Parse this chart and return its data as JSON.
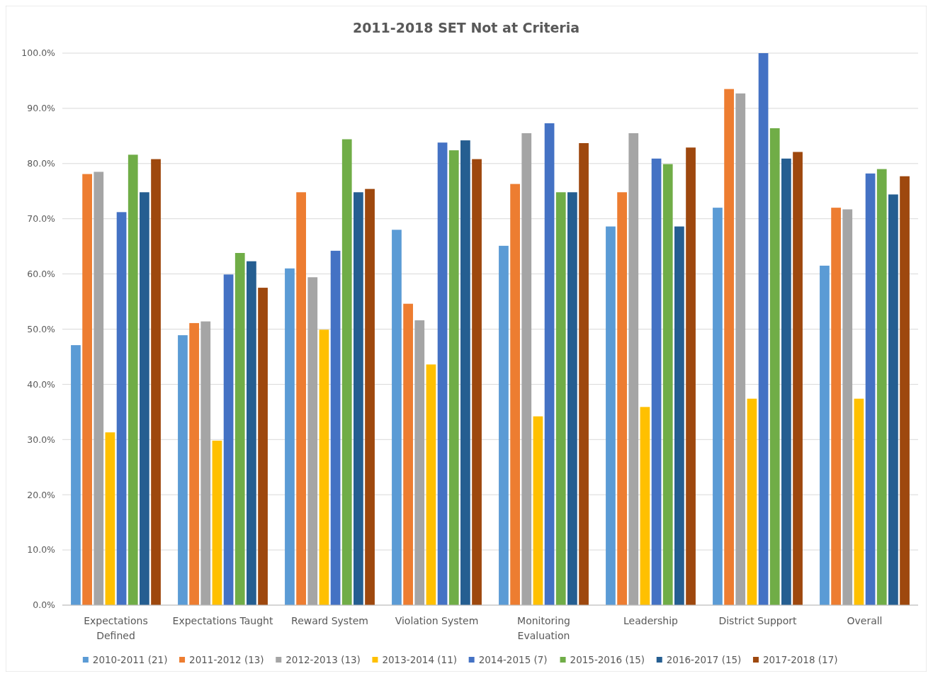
{
  "chart_data": {
    "type": "bar",
    "title": "2011-2018 SET Not at Criteria",
    "categories": [
      "Expectations Defined",
      "Expectations Taught",
      "Reward System",
      "Violation System",
      "Monitoring Evaluation",
      "Leadership",
      "District Support",
      "Overall"
    ],
    "series": [
      {
        "name": "2010-2011 (21)",
        "color": "#5b9bd5",
        "values": [
          47.1,
          48.9,
          61.0,
          68.0,
          65.1,
          68.6,
          72.0,
          61.5
        ]
      },
      {
        "name": "2011-2012 (13)",
        "color": "#ed7d31",
        "values": [
          78.1,
          51.1,
          74.8,
          54.6,
          76.3,
          74.8,
          93.5,
          72.0
        ]
      },
      {
        "name": "2012-2013 (13)",
        "color": "#a5a5a5",
        "values": [
          78.5,
          51.4,
          59.4,
          51.6,
          85.5,
          85.5,
          92.7,
          71.7
        ]
      },
      {
        "name": "2013-2014 (11)",
        "color": "#ffc000",
        "values": [
          31.3,
          29.8,
          49.9,
          43.6,
          34.2,
          35.9,
          37.4,
          37.4
        ]
      },
      {
        "name": "2014-2015 (7)",
        "color": "#4472c4",
        "values": [
          71.2,
          59.9,
          64.2,
          83.8,
          87.3,
          80.9,
          100.0,
          78.2
        ]
      },
      {
        "name": "2015-2016 (15)",
        "color": "#70ad47",
        "values": [
          81.6,
          63.8,
          84.4,
          82.4,
          74.8,
          79.9,
          86.4,
          79.0
        ]
      },
      {
        "name": "2016-2017 (15)",
        "color": "#255e91",
        "values": [
          74.8,
          62.3,
          74.8,
          84.2,
          74.8,
          68.6,
          80.9,
          74.4
        ]
      },
      {
        "name": "2017-2018 (17)",
        "color": "#9e480e",
        "values": [
          80.8,
          57.5,
          75.4,
          80.8,
          83.7,
          82.9,
          82.1,
          77.7
        ]
      }
    ],
    "ylim": [
      0,
      100
    ],
    "yticks": [
      {
        "value": 0,
        "label": "0.0%"
      },
      {
        "value": 10,
        "label": "10.0%"
      },
      {
        "value": 20,
        "label": "20.0%"
      },
      {
        "value": 30,
        "label": "30.0%"
      },
      {
        "value": 40,
        "label": "40.0%"
      },
      {
        "value": 50,
        "label": "50.0%"
      },
      {
        "value": 60,
        "label": "60.0%"
      },
      {
        "value": 70,
        "label": "70.0%"
      },
      {
        "value": 80,
        "label": "80.0%"
      },
      {
        "value": 90,
        "label": "90.0%"
      },
      {
        "value": 100,
        "label": "100.0%"
      }
    ],
    "grid": "y",
    "legend": "bottom"
  }
}
